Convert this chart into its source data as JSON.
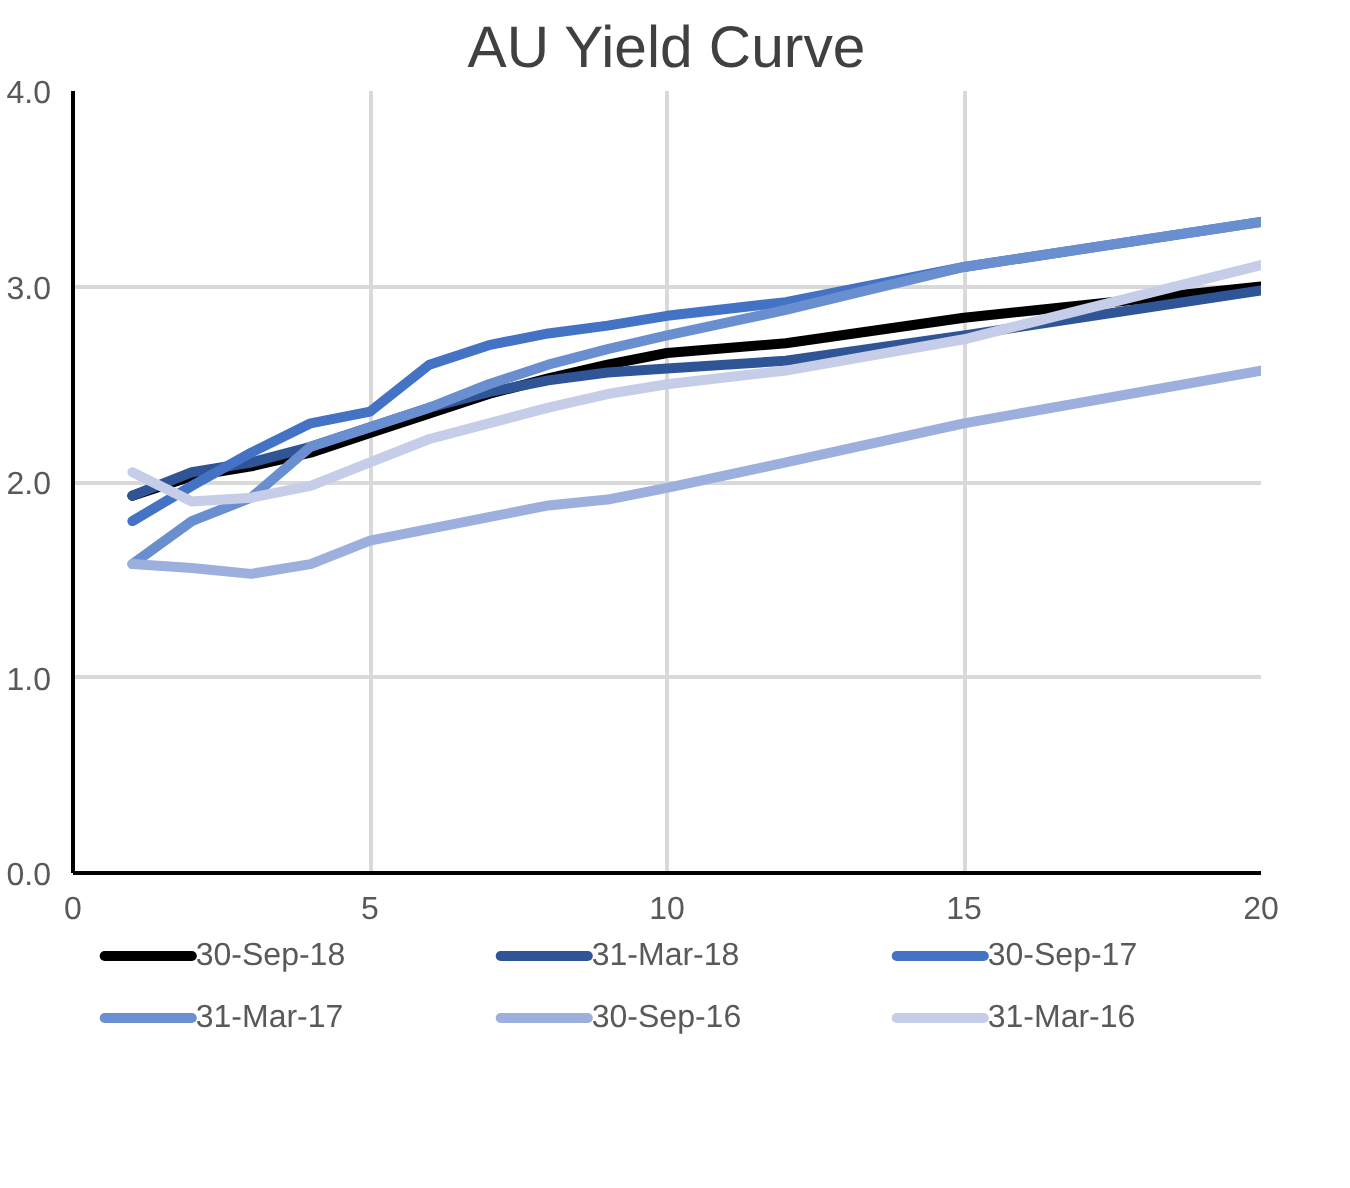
{
  "chart_data": {
    "type": "line",
    "title": "AU Yield Curve",
    "x": [
      1,
      2,
      3,
      4,
      5,
      6,
      7,
      8,
      9,
      10,
      12,
      15,
      20
    ],
    "series": [
      {
        "name": "30-Sep-18",
        "color": "#000000",
        "values": [
          1.93,
          2.03,
          2.08,
          2.15,
          2.25,
          2.35,
          2.45,
          2.53,
          2.6,
          2.66,
          2.71,
          2.84,
          3.0
        ]
      },
      {
        "name": "31-Mar-18",
        "color": "#2f5597",
        "values": [
          1.93,
          2.05,
          2.1,
          2.18,
          2.28,
          2.38,
          2.46,
          2.52,
          2.56,
          2.58,
          2.62,
          2.75,
          2.98
        ]
      },
      {
        "name": "30-Sep-17",
        "color": "#4472c4",
        "values": [
          1.8,
          1.98,
          2.15,
          2.3,
          2.36,
          2.6,
          2.7,
          2.76,
          2.8,
          2.85,
          2.92,
          3.1,
          3.33
        ]
      },
      {
        "name": "31-Mar-17",
        "color": "#6a8fd0",
        "values": [
          1.58,
          1.8,
          1.92,
          2.18,
          2.28,
          2.38,
          2.5,
          2.6,
          2.68,
          2.75,
          2.88,
          3.1,
          3.33
        ]
      },
      {
        "name": "30-Sep-16",
        "color": "#9dafdc",
        "values": [
          1.58,
          1.56,
          1.53,
          1.58,
          1.7,
          1.76,
          1.82,
          1.88,
          1.91,
          1.97,
          2.1,
          2.3,
          2.57
        ]
      },
      {
        "name": "31-Mar-16",
        "color": "#c5cde8",
        "values": [
          2.05,
          1.9,
          1.92,
          1.98,
          2.1,
          2.22,
          2.3,
          2.38,
          2.45,
          2.5,
          2.57,
          2.73,
          3.11
        ]
      }
    ],
    "xlim": [
      0,
      20
    ],
    "xticks": [
      0,
      5,
      10,
      15,
      20
    ],
    "ylim": [
      0,
      4
    ],
    "yticks": [
      {
        "value": 0,
        "label": "0.0"
      },
      {
        "value": 1,
        "label": "1.0"
      },
      {
        "value": 2,
        "label": "2.0"
      },
      {
        "value": 3,
        "label": "3.0"
      },
      {
        "value": 4,
        "label": "4.0"
      }
    ],
    "grid": true,
    "legend": "bottom",
    "marker": "none",
    "line_style": "solid"
  }
}
